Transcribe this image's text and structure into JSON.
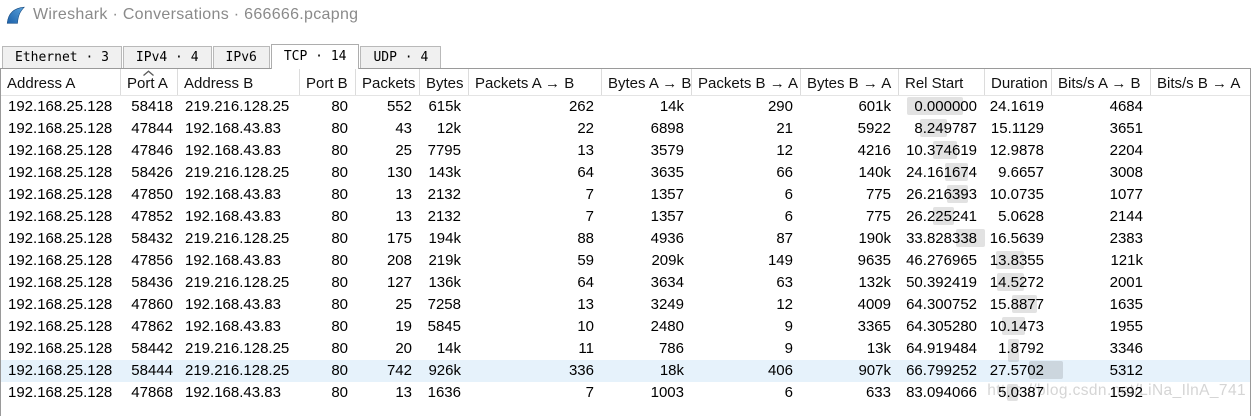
{
  "window": {
    "title": "Wireshark · Conversations · 666666.pcapng",
    "icon": "wireshark-shark-fin"
  },
  "tabs": [
    {
      "id": "ethernet",
      "label": "Ethernet · 3",
      "active": false
    },
    {
      "id": "ipv4",
      "label": "IPv4 · 4",
      "active": false
    },
    {
      "id": "ipv6",
      "label": "IPv6",
      "active": false
    },
    {
      "id": "tcp",
      "label": "TCP · 14",
      "active": true
    },
    {
      "id": "udp",
      "label": "UDP · 4",
      "active": false
    }
  ],
  "table": {
    "columns": [
      "Address A",
      "Port A",
      "Address B",
      "Port B",
      "Packets",
      "Bytes",
      "Packets A → B",
      "Bytes A → B",
      "Packets B → A",
      "Bytes B → A",
      "Rel Start",
      "Duration",
      "Bits/s A → B",
      "Bits/s B → A"
    ],
    "sort": {
      "direction": "ascending"
    },
    "rows": [
      {
        "highlighted": false,
        "cells": [
          "192.168.25.128",
          "58418",
          "219.216.128.25",
          "80",
          "552",
          "615k",
          "262",
          "14k",
          "290",
          "601k",
          "0.000000",
          "24.1619",
          "4684",
          ""
        ]
      },
      {
        "highlighted": false,
        "cells": [
          "192.168.25.128",
          "47844",
          "192.168.43.83",
          "80",
          "43",
          "12k",
          "22",
          "6898",
          "21",
          "5922",
          "8.249787",
          "15.1129",
          "3651",
          ""
        ]
      },
      {
        "highlighted": false,
        "cells": [
          "192.168.25.128",
          "47846",
          "192.168.43.83",
          "80",
          "25",
          "7795",
          "13",
          "3579",
          "12",
          "4216",
          "10.374619",
          "12.9878",
          "2204",
          ""
        ]
      },
      {
        "highlighted": false,
        "cells": [
          "192.168.25.128",
          "58426",
          "219.216.128.25",
          "80",
          "130",
          "143k",
          "64",
          "3635",
          "66",
          "140k",
          "24.161674",
          "9.6657",
          "3008",
          ""
        ]
      },
      {
        "highlighted": false,
        "cells": [
          "192.168.25.128",
          "47850",
          "192.168.43.83",
          "80",
          "13",
          "2132",
          "7",
          "1357",
          "6",
          "775",
          "26.216393",
          "10.0735",
          "1077",
          ""
        ]
      },
      {
        "highlighted": false,
        "cells": [
          "192.168.25.128",
          "47852",
          "192.168.43.83",
          "80",
          "13",
          "2132",
          "7",
          "1357",
          "6",
          "775",
          "26.225241",
          "5.0628",
          "2144",
          ""
        ]
      },
      {
        "highlighted": false,
        "cells": [
          "192.168.25.128",
          "58432",
          "219.216.128.25",
          "80",
          "175",
          "194k",
          "88",
          "4936",
          "87",
          "190k",
          "33.828338",
          "16.5639",
          "2383",
          ""
        ]
      },
      {
        "highlighted": false,
        "cells": [
          "192.168.25.128",
          "47856",
          "192.168.43.83",
          "80",
          "208",
          "219k",
          "59",
          "209k",
          "149",
          "9635",
          "46.276965",
          "13.8355",
          "121k",
          ""
        ]
      },
      {
        "highlighted": false,
        "cells": [
          "192.168.25.128",
          "58436",
          "219.216.128.25",
          "80",
          "127",
          "136k",
          "64",
          "3634",
          "63",
          "132k",
          "50.392419",
          "14.5272",
          "2001",
          ""
        ]
      },
      {
        "highlighted": false,
        "cells": [
          "192.168.25.128",
          "47860",
          "192.168.43.83",
          "80",
          "25",
          "7258",
          "13",
          "3249",
          "12",
          "4009",
          "64.300752",
          "15.8877",
          "1635",
          ""
        ]
      },
      {
        "highlighted": false,
        "cells": [
          "192.168.25.128",
          "47862",
          "192.168.43.83",
          "80",
          "19",
          "5845",
          "10",
          "2480",
          "9",
          "3365",
          "64.305280",
          "10.1473",
          "1955",
          ""
        ]
      },
      {
        "highlighted": false,
        "cells": [
          "192.168.25.128",
          "58442",
          "219.216.128.25",
          "80",
          "20",
          "14k",
          "11",
          "786",
          "9",
          "13k",
          "64.919484",
          "1.8792",
          "3346",
          ""
        ]
      },
      {
        "highlighted": true,
        "cells": [
          "192.168.25.128",
          "58444",
          "219.216.128.25",
          "80",
          "742",
          "926k",
          "336",
          "18k",
          "406",
          "907k",
          "66.799252",
          "27.5702",
          "5312",
          ""
        ]
      },
      {
        "highlighted": false,
        "cells": [
          "192.168.25.128",
          "47868",
          "192.168.43.83",
          "80",
          "13",
          "1636",
          "7",
          "1003",
          "6",
          "633",
          "83.094066",
          "5.0387",
          "1592",
          ""
        ]
      }
    ]
  },
  "watermark": "https://blog.csdn.net/LiNa_IlnA_741",
  "colors": {
    "title_text": "#8a8a8a",
    "tab_inactive_bg": "#f0f0f0",
    "tab_active_bg": "#ffffff",
    "row_highlight": "#e6f2fb",
    "logo_blue_dark": "#1b5fa8",
    "logo_blue_light": "#5aa3dc",
    "watermark_gray": "#d5d5d5"
  }
}
